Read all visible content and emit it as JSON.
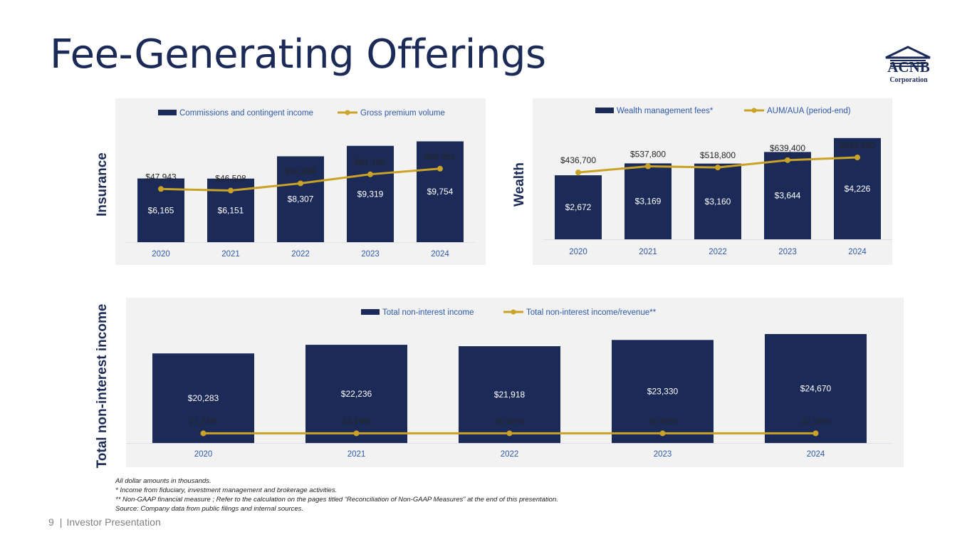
{
  "title": "Fee-Generating Offerings",
  "logo": {
    "name": "ACNB",
    "sub": "Corporation"
  },
  "footer": {
    "page": "9",
    "label": "Investor Presentation",
    "separator": "|"
  },
  "footnotes": [
    "All dollar amounts in thousands.",
    "* Income from fiduciary, investment management and brokerage activities.",
    "** Non-GAAP financial measure ; Refer to the calculation on the pages titled “Reconciliation of Non-GAAP Measures” at the end of this presentation.",
    " Source: Company data from public filings and internal sources."
  ],
  "colors": {
    "bar": "#1b2a57",
    "line": "#c9a227",
    "axis_text": "#2e59a8",
    "panel": "#f2f2f2"
  },
  "chart_data": [
    {
      "id": "insurance",
      "side_label": "Insurance",
      "type": "bar+line",
      "categories": [
        "2020",
        "2021",
        "2022",
        "2023",
        "2024"
      ],
      "series": [
        {
          "name": "Commissions and contingent income",
          "type": "bar",
          "values": [
            6165,
            6151,
            8307,
            9319,
            9754
          ],
          "labels": [
            "$6,165",
            "$6,151",
            "$8,307",
            "$9,319",
            "$9,754"
          ]
        },
        {
          "name": "Gross premium volume",
          "type": "line",
          "values": [
            47943,
            46508,
            52994,
            61180,
            66252
          ],
          "labels": [
            "$47,943",
            "$46,508",
            "$52,994",
            "$61,180",
            "$66,252"
          ]
        }
      ],
      "bar_ylim": [
        0,
        10200
      ],
      "line_ylim": [
        0,
        95000
      ],
      "legend": "top"
    },
    {
      "id": "wealth",
      "side_label": "Wealth",
      "type": "bar+line",
      "categories": [
        "2020",
        "2021",
        "2022",
        "2023",
        "2024"
      ],
      "series": [
        {
          "name": "Wealth management fees*",
          "type": "bar",
          "values": [
            2672,
            3169,
            3160,
            3644,
            4226
          ],
          "labels": [
            "$2,672",
            "$3,169",
            "$3,160",
            "$3,644",
            "$4,226"
          ]
        },
        {
          "name": "AUM/AUA (period-end)",
          "type": "line",
          "values": [
            436700,
            537800,
            518800,
            639400,
            683800
          ],
          "labels": [
            "$436,700",
            "$537,800",
            "$518,800",
            "$639,400",
            "$683,800"
          ]
        }
      ],
      "bar_ylim": [
        0,
        4280
      ],
      "line_ylim": [
        -660000,
        1023000
      ],
      "legend": "top"
    },
    {
      "id": "total",
      "side_label": "Total non-interest income",
      "type": "bar+line",
      "categories": [
        "2020",
        "2021",
        "2022",
        "2023",
        "2024"
      ],
      "series": [
        {
          "name": "Total non-interest income",
          "type": "bar",
          "values": [
            20283,
            22236,
            21918,
            23330,
            24670
          ],
          "labels": [
            "$20,283",
            "$22,236",
            "$21,918",
            "$23,330",
            "$24,670"
          ]
        },
        {
          "name": "Total non-interest income/revenue**",
          "type": "line",
          "values": [
            21.73,
            23.79,
            20.81,
            20.9,
            22.78
          ],
          "labels": [
            "21.73%",
            "23.79%",
            "20.81%",
            "20.90%",
            "22.78%"
          ]
        }
      ],
      "bar_ylim": [
        0,
        24670
      ],
      "line_ylim": [
        -7000,
        72000
      ],
      "legend": "top"
    }
  ]
}
